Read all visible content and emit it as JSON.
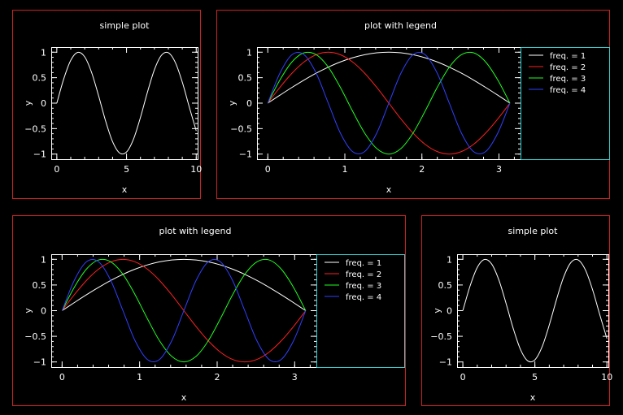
{
  "colors": {
    "background": "#000000",
    "frame": "#cc2222",
    "legend_box": "#33cccc",
    "axis": "#ffffff"
  },
  "chart_data": [
    {
      "type": "line",
      "title": "simple plot",
      "xlabel": "x",
      "ylabel": "y",
      "xlim": [
        -0.4,
        10.1
      ],
      "ylim": [
        -1.1,
        1.1
      ],
      "xticks": [
        0,
        5,
        10
      ],
      "xtick_labels": [
        "0",
        "5",
        "10"
      ],
      "yticks": [
        -1,
        -0.5,
        0,
        0.5,
        1
      ],
      "ytick_labels": [
        "−1",
        "−0.5",
        "0",
        "0.5",
        "1"
      ],
      "legend": null,
      "series": [
        {
          "color": "#ffffff",
          "x": [
            0,
            0.5,
            1,
            1.5,
            2,
            2.5,
            3,
            3.5,
            4,
            4.5,
            5,
            5.5,
            6,
            6.5,
            7,
            7.5,
            8,
            8.5,
            9,
            9.5,
            10
          ],
          "y": [
            0,
            0.479,
            0.841,
            0.997,
            0.909,
            0.598,
            0.141,
            -0.351,
            -0.757,
            -0.978,
            -0.959,
            -0.706,
            -0.279,
            0.215,
            0.657,
            0.938,
            0.989,
            0.798,
            0.412,
            -0.075,
            -0.544
          ]
        }
      ]
    },
    {
      "type": "line",
      "title": "plot with legend",
      "xlabel": "x",
      "ylabel": "y",
      "xlim": [
        -0.14,
        3.28
      ],
      "ylim": [
        -1.1,
        1.1
      ],
      "xticks": [
        0,
        1,
        2,
        3
      ],
      "xtick_labels": [
        "0",
        "1",
        "2",
        "3"
      ],
      "yticks": [
        -1,
        -0.5,
        0,
        0.5,
        1
      ],
      "ytick_labels": [
        "−1",
        "−0.5",
        "0",
        "0.5",
        "1"
      ],
      "legend": "right",
      "series": [
        {
          "name": "freq. = 1",
          "color": "#ffffff",
          "x": [
            0,
            0.157,
            0.314,
            0.471,
            0.628,
            0.785,
            0.942,
            1.1,
            1.257,
            1.414,
            1.571,
            1.728,
            1.885,
            2.042,
            2.199,
            2.356,
            2.513,
            2.67,
            2.827,
            2.985,
            3.142
          ],
          "y": [
            0,
            0.156,
            0.309,
            0.454,
            0.588,
            0.707,
            0.809,
            0.891,
            0.951,
            0.988,
            1,
            0.988,
            0.951,
            0.891,
            0.809,
            0.707,
            0.588,
            0.454,
            0.309,
            0.156,
            0
          ]
        },
        {
          "name": "freq. = 2",
          "color": "#ff2020",
          "x": [
            0,
            0.157,
            0.314,
            0.471,
            0.628,
            0.785,
            0.942,
            1.1,
            1.257,
            1.414,
            1.571,
            1.728,
            1.885,
            2.042,
            2.199,
            2.356,
            2.513,
            2.67,
            2.827,
            2.985,
            3.142
          ],
          "y": [
            0,
            0.309,
            0.588,
            0.809,
            0.951,
            1,
            0.951,
            0.809,
            0.588,
            0.309,
            0,
            -0.309,
            -0.588,
            -0.809,
            -0.951,
            -1,
            -0.951,
            -0.809,
            -0.588,
            -0.309,
            0
          ]
        },
        {
          "name": "freq. = 3",
          "color": "#20ff20",
          "x": [
            0,
            0.157,
            0.314,
            0.471,
            0.628,
            0.785,
            0.942,
            1.1,
            1.257,
            1.414,
            1.571,
            1.728,
            1.885,
            2.042,
            2.199,
            2.356,
            2.513,
            2.67,
            2.827,
            2.985,
            3.142
          ],
          "y": [
            0,
            0.454,
            0.809,
            0.988,
            0.951,
            0.707,
            0.309,
            -0.156,
            -0.588,
            -0.891,
            -1,
            -0.891,
            -0.588,
            -0.156,
            0.309,
            0.707,
            0.951,
            0.988,
            0.809,
            0.454,
            0
          ]
        },
        {
          "name": "freq. = 4",
          "color": "#3040ff",
          "x": [
            0,
            0.157,
            0.314,
            0.471,
            0.628,
            0.785,
            0.942,
            1.1,
            1.257,
            1.414,
            1.571,
            1.728,
            1.885,
            2.042,
            2.199,
            2.356,
            2.513,
            2.67,
            2.827,
            2.985,
            3.142
          ],
          "y": [
            0,
            0.588,
            0.951,
            0.951,
            0.588,
            0,
            -0.588,
            -0.951,
            -0.951,
            -0.588,
            0,
            0.588,
            0.951,
            0.951,
            0.588,
            0,
            -0.588,
            -0.951,
            -0.951,
            -0.588,
            0
          ]
        }
      ]
    },
    {
      "type": "line",
      "title": "plot with legend",
      "xlabel": "x",
      "ylabel": "y",
      "xlim": [
        -0.14,
        3.28
      ],
      "ylim": [
        -1.1,
        1.1
      ],
      "xticks": [
        0,
        1,
        2,
        3
      ],
      "xtick_labels": [
        "0",
        "1",
        "2",
        "3"
      ],
      "yticks": [
        -1,
        -0.5,
        0,
        0.5,
        1
      ],
      "ytick_labels": [
        "−1",
        "−0.5",
        "0",
        "0.5",
        "1"
      ],
      "legend": "right",
      "series": [
        {
          "name": "freq. = 1",
          "color": "#ffffff",
          "x": [
            0,
            0.157,
            0.314,
            0.471,
            0.628,
            0.785,
            0.942,
            1.1,
            1.257,
            1.414,
            1.571,
            1.728,
            1.885,
            2.042,
            2.199,
            2.356,
            2.513,
            2.67,
            2.827,
            2.985,
            3.142
          ],
          "y": [
            0,
            0.156,
            0.309,
            0.454,
            0.588,
            0.707,
            0.809,
            0.891,
            0.951,
            0.988,
            1,
            0.988,
            0.951,
            0.891,
            0.809,
            0.707,
            0.588,
            0.454,
            0.309,
            0.156,
            0
          ]
        },
        {
          "name": "freq. = 2",
          "color": "#ff2020",
          "x": [
            0,
            0.157,
            0.314,
            0.471,
            0.628,
            0.785,
            0.942,
            1.1,
            1.257,
            1.414,
            1.571,
            1.728,
            1.885,
            2.042,
            2.199,
            2.356,
            2.513,
            2.67,
            2.827,
            2.985,
            3.142
          ],
          "y": [
            0,
            0.309,
            0.588,
            0.809,
            0.951,
            1,
            0.951,
            0.809,
            0.588,
            0.309,
            0,
            -0.309,
            -0.588,
            -0.809,
            -0.951,
            -1,
            -0.951,
            -0.809,
            -0.588,
            -0.309,
            0
          ]
        },
        {
          "name": "freq. = 3",
          "color": "#20ff20",
          "x": [
            0,
            0.157,
            0.314,
            0.471,
            0.628,
            0.785,
            0.942,
            1.1,
            1.257,
            1.414,
            1.571,
            1.728,
            1.885,
            2.042,
            2.199,
            2.356,
            2.513,
            2.67,
            2.827,
            2.985,
            3.142
          ],
          "y": [
            0,
            0.454,
            0.809,
            0.988,
            0.951,
            0.707,
            0.309,
            -0.156,
            -0.588,
            -0.891,
            -1,
            -0.891,
            -0.588,
            -0.156,
            0.309,
            0.707,
            0.951,
            0.988,
            0.809,
            0.454,
            0
          ]
        },
        {
          "name": "freq. = 4",
          "color": "#3040ff",
          "x": [
            0,
            0.157,
            0.314,
            0.471,
            0.628,
            0.785,
            0.942,
            1.1,
            1.257,
            1.414,
            1.571,
            1.728,
            1.885,
            2.042,
            2.199,
            2.356,
            2.513,
            2.67,
            2.827,
            2.985,
            3.142
          ],
          "y": [
            0,
            0.588,
            0.951,
            0.951,
            0.588,
            0,
            -0.588,
            -0.951,
            -0.951,
            -0.588,
            0,
            0.588,
            0.951,
            0.951,
            0.588,
            0,
            -0.588,
            -0.951,
            -0.951,
            -0.588,
            0
          ]
        }
      ]
    },
    {
      "type": "line",
      "title": "simple plot",
      "xlabel": "x",
      "ylabel": "y",
      "xlim": [
        -0.4,
        10.1
      ],
      "ylim": [
        -1.1,
        1.1
      ],
      "xticks": [
        0,
        5,
        10
      ],
      "xtick_labels": [
        "0",
        "5",
        "10"
      ],
      "yticks": [
        -1,
        -0.5,
        0,
        0.5,
        1
      ],
      "ytick_labels": [
        "−1",
        "−0.5",
        "0",
        "0.5",
        "1"
      ],
      "legend": null,
      "series": [
        {
          "color": "#ffffff",
          "x": [
            0,
            0.5,
            1,
            1.5,
            2,
            2.5,
            3,
            3.5,
            4,
            4.5,
            5,
            5.5,
            6,
            6.5,
            7,
            7.5,
            8,
            8.5,
            9,
            9.5,
            10
          ],
          "y": [
            0,
            0.479,
            0.841,
            0.997,
            0.909,
            0.598,
            0.141,
            -0.351,
            -0.757,
            -0.978,
            -0.959,
            -0.706,
            -0.279,
            0.215,
            0.657,
            0.938,
            0.989,
            0.798,
            0.412,
            -0.075,
            -0.544
          ]
        }
      ]
    }
  ]
}
